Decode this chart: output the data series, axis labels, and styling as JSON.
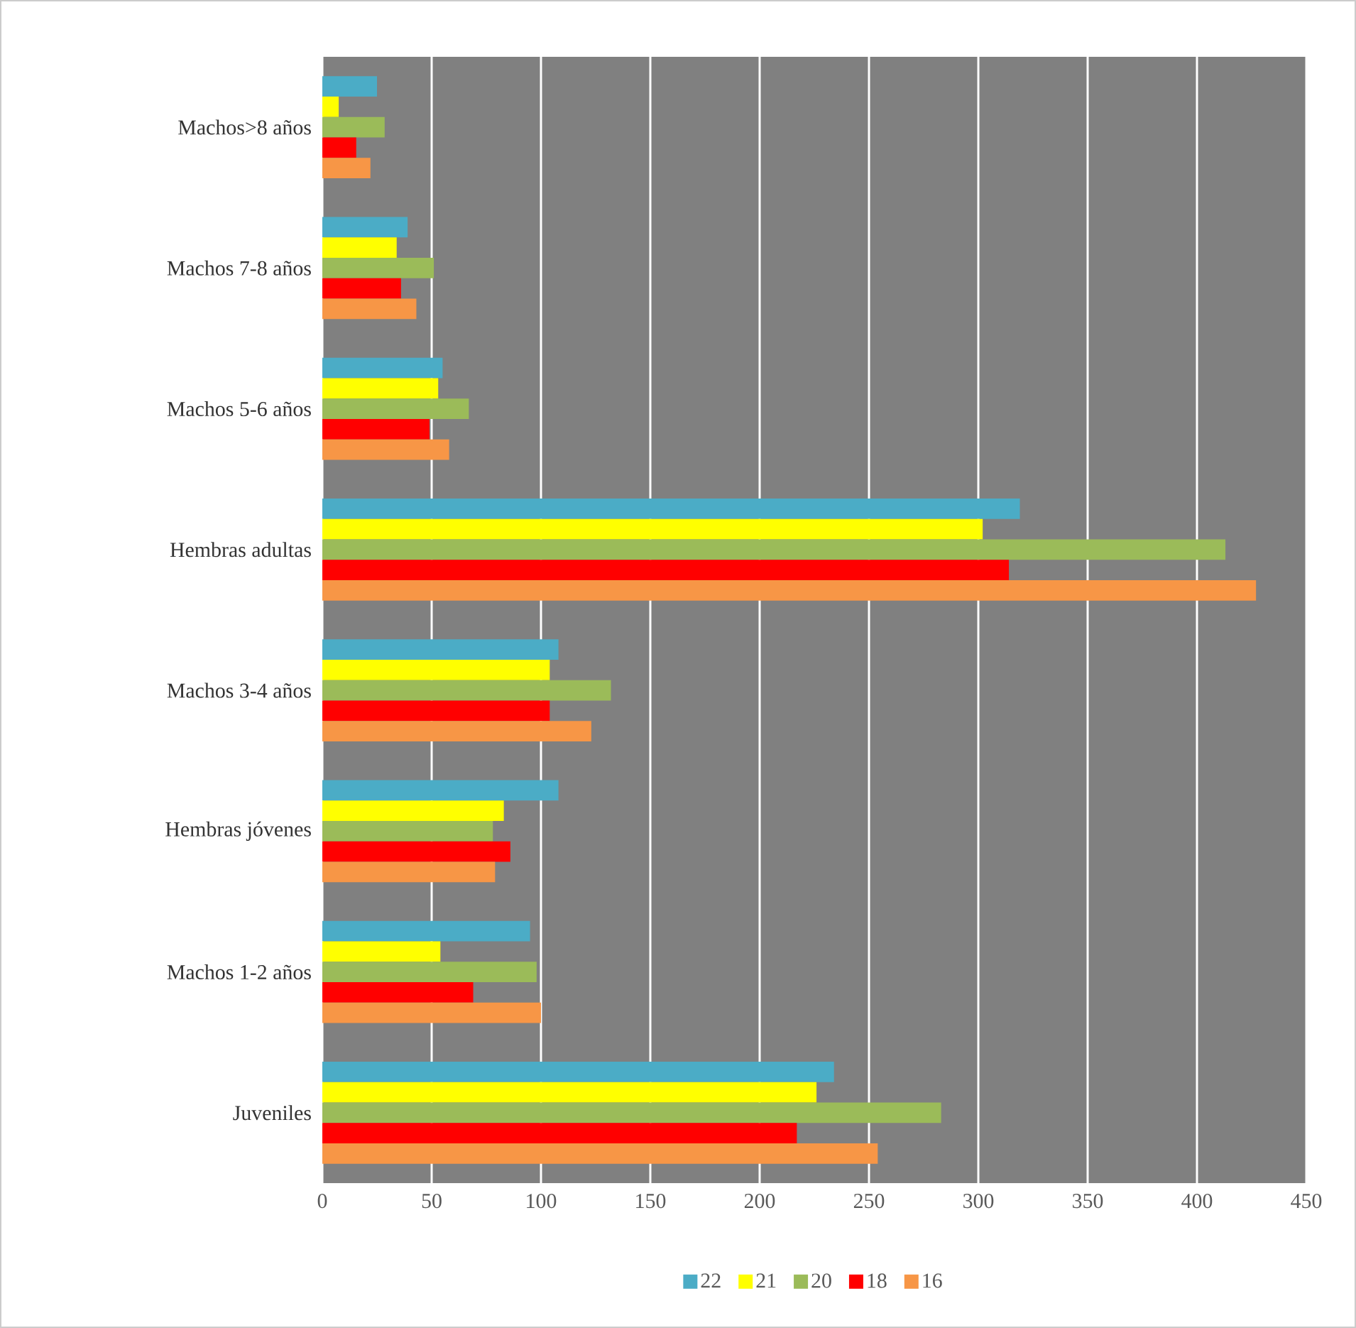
{
  "chart_data": {
    "type": "bar",
    "orientation": "horizontal",
    "categories": [
      "Machos>8 años",
      "Machos 7-8 años",
      "Machos 5-6 años",
      "Hembras adultas",
      "Machos 3-4 años",
      "Hembras jóvenes",
      "Machos 1-2 años",
      "Juveniles"
    ],
    "series": [
      {
        "name": "22",
        "color": "#4bacc6",
        "values": [
          25,
          39,
          55,
          319,
          108,
          108,
          95,
          234
        ]
      },
      {
        "name": "21",
        "color": "#ffff00",
        "values": [
          7.5,
          34,
          53,
          302,
          104,
          83,
          54,
          226
        ]
      },
      {
        "name": "20",
        "color": "#9bbb59",
        "values": [
          28.5,
          51,
          67,
          413,
          132,
          78,
          98,
          283
        ]
      },
      {
        "name": "18",
        "color": "#ff0000",
        "values": [
          15.5,
          36,
          49,
          314,
          104,
          86,
          69,
          217
        ]
      },
      {
        "name": "16",
        "color": "#f79646",
        "values": [
          22,
          43,
          58,
          427,
          123,
          79,
          100,
          254
        ]
      }
    ],
    "xlim": [
      0,
      450
    ],
    "xticks": [
      0,
      50,
      100,
      150,
      200,
      250,
      300,
      350,
      400,
      450
    ],
    "grid": "x",
    "legend": "bottom"
  }
}
